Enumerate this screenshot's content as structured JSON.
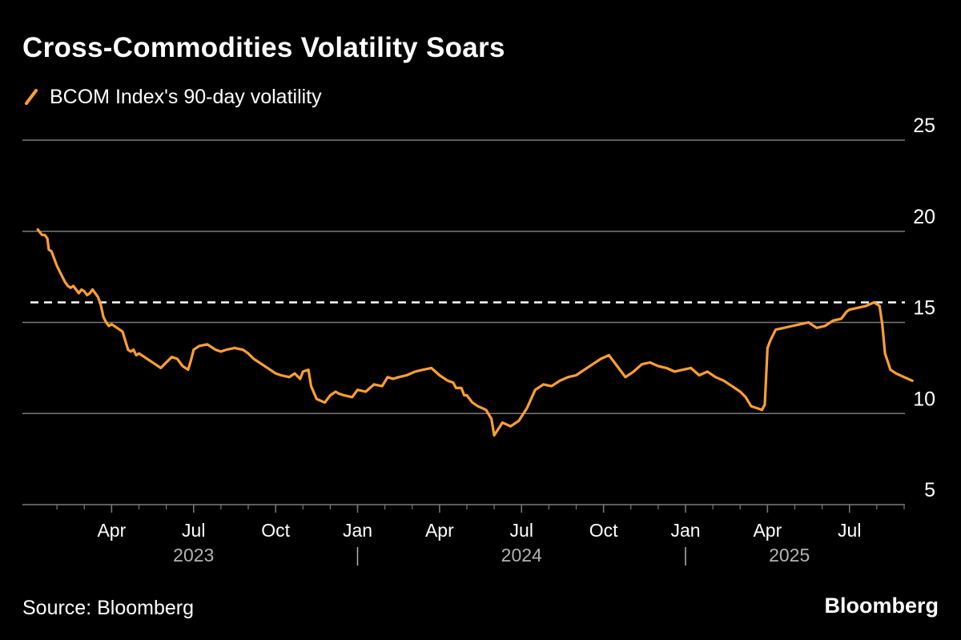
{
  "header": {
    "title": "Cross-Commodities Volatility Soars"
  },
  "footer": {
    "source": "Source: Bloomberg",
    "brand": "Bloomberg"
  },
  "colors": {
    "background": "#000000",
    "series": "#ff9f33",
    "grid": "#7a7a7a",
    "text": "#ffffff",
    "year_text": "#b3b3b3",
    "reference_line": "#ffffff"
  },
  "chart_data": {
    "type": "line",
    "title": "Cross-Commodities Volatility Soars",
    "xlabel": "",
    "ylabel": "",
    "ylim": [
      5,
      25
    ],
    "yticks": [
      5,
      10,
      15,
      20,
      25
    ],
    "ytick_labels": [
      "5",
      "10",
      "15",
      "20",
      "25"
    ],
    "xlim_months": [
      0,
      32
    ],
    "xticks": [
      {
        "label": "Apr",
        "month": 3
      },
      {
        "label": "Jul",
        "month": 6
      },
      {
        "label": "Oct",
        "month": 9
      },
      {
        "label": "Jan",
        "month": 12
      },
      {
        "label": "Apr",
        "month": 15
      },
      {
        "label": "Jul",
        "month": 18
      },
      {
        "label": "Oct",
        "month": 21
      },
      {
        "label": "Jan",
        "month": 24
      },
      {
        "label": "Apr",
        "month": 27
      },
      {
        "label": "Jul",
        "month": 30
      }
    ],
    "year_labels": [
      {
        "label": "2023",
        "center_month": 6
      },
      {
        "label": "2024",
        "center_month": 18
      },
      {
        "label": "2025",
        "center_month": 27.8
      }
    ],
    "year_separators": [
      12,
      24
    ],
    "grid": true,
    "legend": {
      "position": "top-left",
      "entries": [
        "BCOM Index's 90-day volatility"
      ]
    },
    "reference_line": {
      "value": 16.1,
      "style": "dashed"
    },
    "series": [
      {
        "name": "BCOM Index's 90-day volatility",
        "x_months": [
          0.3,
          0.35,
          0.45,
          0.55,
          0.65,
          0.7,
          0.8,
          0.9,
          1.0,
          1.1,
          1.2,
          1.3,
          1.4,
          1.5,
          1.6,
          1.7,
          1.8,
          1.9,
          2.0,
          2.1,
          2.2,
          2.3,
          2.4,
          2.5,
          2.6,
          2.7,
          2.8,
          2.9,
          3.0,
          3.2,
          3.4,
          3.6,
          3.7,
          3.8,
          3.9,
          4.0,
          4.2,
          4.4,
          4.6,
          4.8,
          5.0,
          5.2,
          5.4,
          5.6,
          5.8,
          5.9,
          6.0,
          6.2,
          6.5,
          6.8,
          7.0,
          7.2,
          7.5,
          7.8,
          8.0,
          8.2,
          8.5,
          8.8,
          9.0,
          9.2,
          9.5,
          9.7,
          9.9,
          10.0,
          10.2,
          10.3,
          10.5,
          10.8,
          11.0,
          11.2,
          11.3,
          11.5,
          11.8,
          12.0,
          12.3,
          12.6,
          12.9,
          13.1,
          13.3,
          13.5,
          13.8,
          14.1,
          14.4,
          14.7,
          15.0,
          15.3,
          15.5,
          15.6,
          15.8,
          15.9,
          16.0,
          16.2,
          16.4,
          16.7,
          16.9,
          17.0,
          17.3,
          17.6,
          17.9,
          18.2,
          18.5,
          18.8,
          19.1,
          19.4,
          19.7,
          20.0,
          20.3,
          20.6,
          20.9,
          21.2,
          21.5,
          21.8,
          22.1,
          22.4,
          22.7,
          23.0,
          23.3,
          23.6,
          23.9,
          24.2,
          24.5,
          24.8,
          25.1,
          25.4,
          25.7,
          26.0,
          26.2,
          26.4,
          26.6,
          26.8,
          26.9,
          27.0,
          27.1,
          27.3,
          27.6,
          27.9,
          28.2,
          28.5,
          28.8,
          29.1,
          29.4,
          29.7,
          29.9,
          30.0,
          30.3,
          30.6,
          30.9,
          31.1,
          31.2,
          31.3,
          31.5,
          31.7,
          32.0,
          32.3
        ],
        "values": [
          20.1,
          20.0,
          19.8,
          19.8,
          19.6,
          19.0,
          18.9,
          18.5,
          18.1,
          17.8,
          17.5,
          17.2,
          17.0,
          16.9,
          17.0,
          16.8,
          16.6,
          16.8,
          16.7,
          16.5,
          16.6,
          16.8,
          16.6,
          16.4,
          16.0,
          15.3,
          15.0,
          14.8,
          14.9,
          14.7,
          14.5,
          13.5,
          13.4,
          13.5,
          13.2,
          13.3,
          13.1,
          12.9,
          12.7,
          12.5,
          12.8,
          13.1,
          13.0,
          12.6,
          12.4,
          12.9,
          13.5,
          13.7,
          13.8,
          13.5,
          13.4,
          13.5,
          13.6,
          13.5,
          13.3,
          13.0,
          12.7,
          12.4,
          12.2,
          12.1,
          12.0,
          12.2,
          11.9,
          12.3,
          12.4,
          11.5,
          10.8,
          10.6,
          11.0,
          11.2,
          11.1,
          11.0,
          10.9,
          11.3,
          11.2,
          11.6,
          11.5,
          12.0,
          11.9,
          12.0,
          12.1,
          12.3,
          12.4,
          12.5,
          12.1,
          11.8,
          11.7,
          11.4,
          11.4,
          11.0,
          11.0,
          10.6,
          10.4,
          10.2,
          9.7,
          8.8,
          9.5,
          9.3,
          9.6,
          10.3,
          11.3,
          11.6,
          11.5,
          11.8,
          12.0,
          12.1,
          12.4,
          12.7,
          13.0,
          13.2,
          12.6,
          12.0,
          12.3,
          12.7,
          12.8,
          12.6,
          12.5,
          12.3,
          12.4,
          12.5,
          12.1,
          12.3,
          12.0,
          11.8,
          11.5,
          11.2,
          10.9,
          10.4,
          10.3,
          10.2,
          10.5,
          13.6,
          14.0,
          14.6,
          14.7,
          14.8,
          14.9,
          15.0,
          14.7,
          14.8,
          15.1,
          15.2,
          15.6,
          15.7,
          15.8,
          15.9,
          16.1,
          15.9,
          14.9,
          13.3,
          12.4,
          12.2,
          12.0,
          11.8
        ]
      }
    ]
  }
}
